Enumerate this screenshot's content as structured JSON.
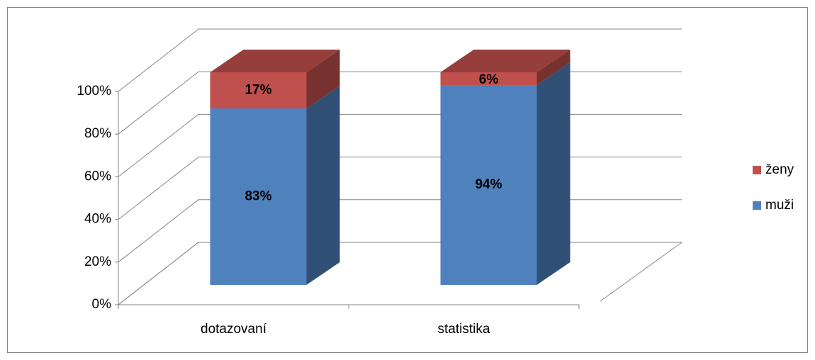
{
  "chart_data": {
    "type": "bar3d_stacked",
    "categories": [
      "dotazovaní",
      "statistika"
    ],
    "series": [
      {
        "name": "muži",
        "color": "#4f81bd",
        "values": [
          83,
          94
        ],
        "value_labels": [
          "83%",
          "94%"
        ]
      },
      {
        "name": "ženy",
        "color": "#c0504d",
        "values": [
          17,
          6
        ],
        "value_labels": [
          "17%",
          "6%"
        ]
      }
    ],
    "ylim": [
      0,
      100
    ],
    "yticks": [
      {
        "value": 0,
        "label": "0%"
      },
      {
        "value": 20,
        "label": "20%"
      },
      {
        "value": 40,
        "label": "40%"
      },
      {
        "value": 60,
        "label": "60%"
      },
      {
        "value": 80,
        "label": "80%"
      },
      {
        "value": 100,
        "label": "100%"
      }
    ],
    "grid": true,
    "legend": "right"
  }
}
